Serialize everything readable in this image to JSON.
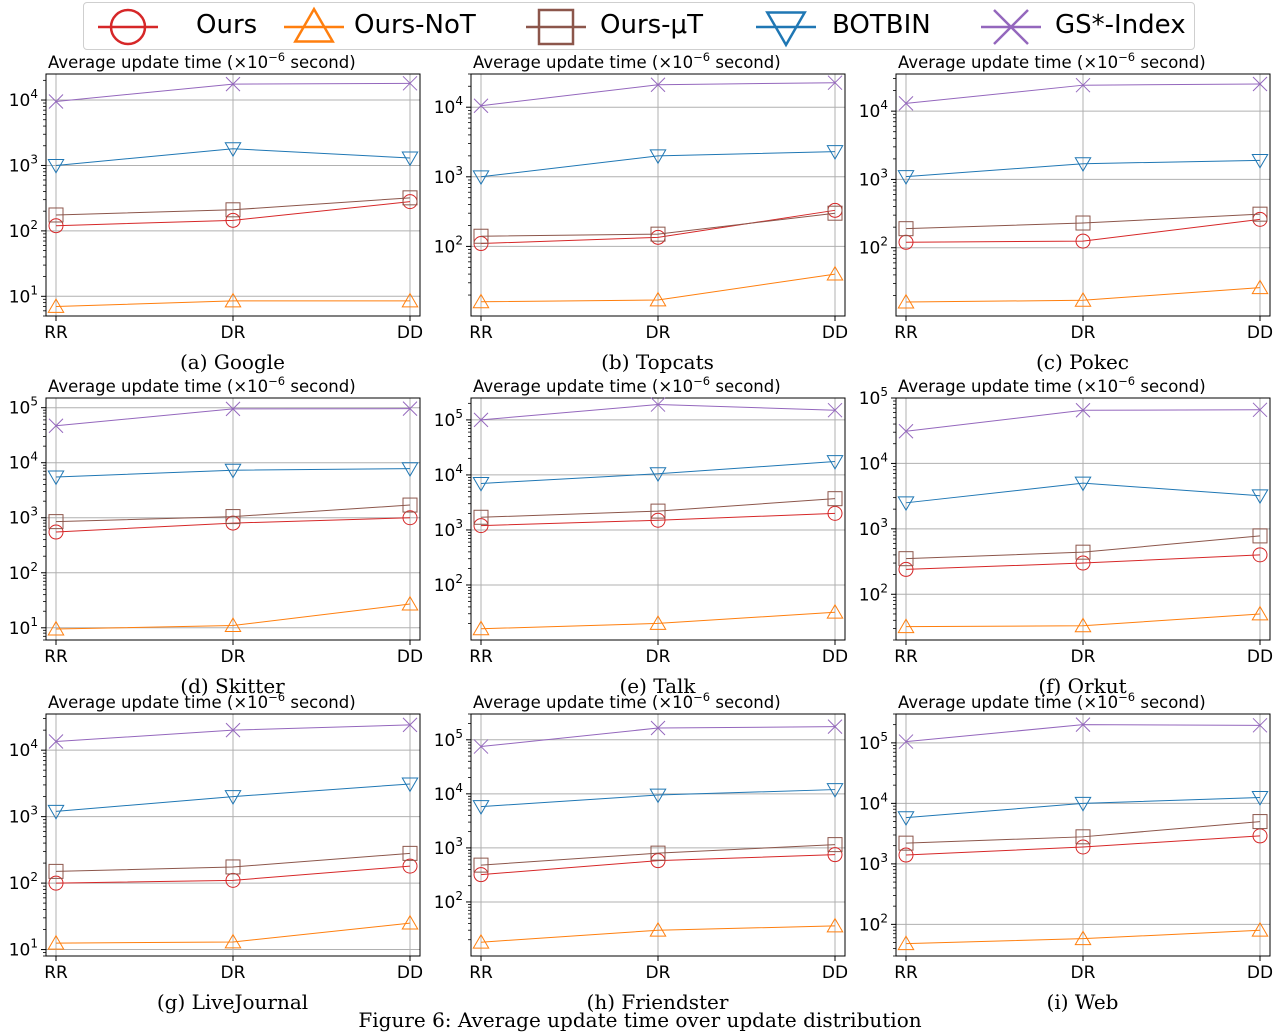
{
  "legend": [
    {
      "name": "Ours",
      "color": "#d62728",
      "marker": "circle"
    },
    {
      "name": "Ours-NoT",
      "color": "#ff7f0e",
      "marker": "triangle-up"
    },
    {
      "name": "Ours-μT",
      "color": "#8c564b",
      "marker": "square"
    },
    {
      "name": "BOTBIN",
      "color": "#1f77b4",
      "marker": "triangle-down"
    },
    {
      "name": "GS*-Index",
      "color": "#9467bd",
      "marker": "x"
    }
  ],
  "figure_caption": "Figure 6: Average update time over update distribution",
  "chart_data": [
    {
      "caption": "(a) Google",
      "type": "line",
      "ylabel": "Average update time (×10⁻⁶ second)",
      "yscale": "log",
      "categories": [
        "RR",
        "DR",
        "DD"
      ],
      "ylim": [
        5,
        25000
      ],
      "yticks_exp": [
        1,
        2,
        3,
        4
      ],
      "series": [
        {
          "name": "Ours",
          "values": [
            120,
            145,
            280
          ]
        },
        {
          "name": "Ours-NoT",
          "values": [
            7,
            8.5,
            8.5
          ]
        },
        {
          "name": "Ours-μT",
          "values": [
            175,
            210,
            320
          ]
        },
        {
          "name": "BOTBIN",
          "values": [
            1000,
            1800,
            1300
          ]
        },
        {
          "name": "GS*-Index",
          "values": [
            9500,
            17500,
            18000
          ]
        }
      ]
    },
    {
      "caption": "(b) Topcats",
      "type": "line",
      "ylabel": "Average update time (×10⁻⁶ second)",
      "yscale": "log",
      "categories": [
        "RR",
        "DR",
        "DD"
      ],
      "ylim": [
        10,
        30000
      ],
      "yticks_exp": [
        2,
        3,
        4
      ],
      "series": [
        {
          "name": "Ours",
          "values": [
            110,
            135,
            330
          ]
        },
        {
          "name": "Ours-NoT",
          "values": [
            16,
            17,
            40
          ]
        },
        {
          "name": "Ours-μT",
          "values": [
            140,
            150,
            300
          ]
        },
        {
          "name": "BOTBIN",
          "values": [
            1000,
            2000,
            2300
          ]
        },
        {
          "name": "GS*-Index",
          "values": [
            10500,
            21000,
            22500
          ]
        }
      ]
    },
    {
      "caption": "(c) Pokec",
      "type": "line",
      "ylabel": "Average update time (×10⁻⁶ second)",
      "yscale": "log",
      "categories": [
        "RR",
        "DR",
        "DD"
      ],
      "ylim": [
        10,
        35000
      ],
      "yticks_exp": [
        2,
        3,
        4
      ],
      "series": [
        {
          "name": "Ours",
          "values": [
            120,
            125,
            260
          ]
        },
        {
          "name": "Ours-NoT",
          "values": [
            16,
            17,
            26
          ]
        },
        {
          "name": "Ours-μT",
          "values": [
            190,
            230,
            310
          ]
        },
        {
          "name": "BOTBIN",
          "values": [
            1100,
            1700,
            1900
          ]
        },
        {
          "name": "GS*-Index",
          "values": [
            13000,
            24000,
            25000
          ]
        }
      ]
    },
    {
      "caption": "(d) Skitter",
      "type": "line",
      "ylabel": "Average update time (×10⁻⁶ second)",
      "yscale": "log",
      "categories": [
        "RR",
        "DR",
        "DD"
      ],
      "ylim": [
        6,
        150000
      ],
      "yticks_exp": [
        1,
        2,
        3,
        4,
        5
      ],
      "series": [
        {
          "name": "Ours",
          "values": [
            550,
            800,
            1000
          ]
        },
        {
          "name": "Ours-NoT",
          "values": [
            9.5,
            11,
            27
          ]
        },
        {
          "name": "Ours-μT",
          "values": [
            850,
            1050,
            1700
          ]
        },
        {
          "name": "BOTBIN",
          "values": [
            5500,
            7300,
            7800
          ]
        },
        {
          "name": "GS*-Index",
          "values": [
            47000,
            95000,
            96000
          ]
        }
      ]
    },
    {
      "caption": "(e) Talk",
      "type": "line",
      "ylabel": "Average update time (×10⁻⁶ second)",
      "yscale": "log",
      "categories": [
        "RR",
        "DR",
        "DD"
      ],
      "ylim": [
        10,
        250000
      ],
      "yticks_exp": [
        2,
        3,
        4,
        5
      ],
      "series": [
        {
          "name": "Ours",
          "values": [
            1200,
            1500,
            2000
          ]
        },
        {
          "name": "Ours-NoT",
          "values": [
            16,
            20,
            32
          ]
        },
        {
          "name": "Ours-μT",
          "values": [
            1700,
            2200,
            3700
          ]
        },
        {
          "name": "BOTBIN",
          "values": [
            7000,
            10500,
            17500
          ]
        },
        {
          "name": "GS*-Index",
          "values": [
            100000,
            190000,
            150000
          ]
        }
      ]
    },
    {
      "caption": "(f) Orkut",
      "type": "line",
      "ylabel": "Average update time (×10⁻⁶ second)",
      "yscale": "log",
      "categories": [
        "RR",
        "DR",
        "DD"
      ],
      "ylim": [
        20,
        100000
      ],
      "yticks_exp": [
        2,
        3,
        4,
        5
      ],
      "series": [
        {
          "name": "Ours",
          "values": [
            240,
            300,
            400
          ]
        },
        {
          "name": "Ours-NoT",
          "values": [
            32,
            33,
            50
          ]
        },
        {
          "name": "Ours-μT",
          "values": [
            350,
            440,
            780
          ]
        },
        {
          "name": "BOTBIN",
          "values": [
            2500,
            5000,
            3200
          ]
        },
        {
          "name": "GS*-Index",
          "values": [
            31000,
            65000,
            66000
          ]
        }
      ]
    },
    {
      "caption": "(g) LiveJournal",
      "type": "line",
      "ylabel": "Average update time (×10⁻⁶ second)",
      "yscale": "log",
      "categories": [
        "RR",
        "DR",
        "DD"
      ],
      "ylim": [
        8,
        35000
      ],
      "yticks_exp": [
        1,
        2,
        3,
        4
      ],
      "series": [
        {
          "name": "Ours",
          "values": [
            100,
            110,
            180
          ]
        },
        {
          "name": "Ours-NoT",
          "values": [
            12.5,
            13,
            25
          ]
        },
        {
          "name": "Ours-μT",
          "values": [
            150,
            175,
            280
          ]
        },
        {
          "name": "BOTBIN",
          "values": [
            1200,
            2000,
            3100
          ]
        },
        {
          "name": "GS*-Index",
          "values": [
            13500,
            20000,
            24000
          ]
        }
      ]
    },
    {
      "caption": "(h) Friendster",
      "type": "line",
      "ylabel": "Average update time (×10⁻⁶ second)",
      "yscale": "log",
      "categories": [
        "RR",
        "DR",
        "DD"
      ],
      "ylim": [
        10,
        300000
      ],
      "yticks_exp": [
        2,
        3,
        4,
        5
      ],
      "series": [
        {
          "name": "Ours",
          "values": [
            320,
            580,
            750
          ]
        },
        {
          "name": "Ours-NoT",
          "values": [
            18,
            30,
            36
          ]
        },
        {
          "name": "Ours-μT",
          "values": [
            480,
            800,
            1150
          ]
        },
        {
          "name": "BOTBIN",
          "values": [
            5800,
            9500,
            12000
          ]
        },
        {
          "name": "GS*-Index",
          "values": [
            75000,
            165000,
            175000
          ]
        }
      ]
    },
    {
      "caption": "(i) Web",
      "type": "line",
      "ylabel": "Average update time (×10⁻⁶ second)",
      "yscale": "log",
      "categories": [
        "RR",
        "DR",
        "DD"
      ],
      "ylim": [
        30,
        300000
      ],
      "yticks_exp": [
        2,
        3,
        4,
        5
      ],
      "series": [
        {
          "name": "Ours",
          "values": [
            1400,
            1900,
            2900
          ]
        },
        {
          "name": "Ours-NoT",
          "values": [
            48,
            58,
            80
          ]
        },
        {
          "name": "Ours-μT",
          "values": [
            2200,
            2800,
            5000
          ]
        },
        {
          "name": "BOTBIN",
          "values": [
            5800,
            10000,
            12500
          ]
        },
        {
          "name": "GS*-Index",
          "values": [
            105000,
            200000,
            195000
          ]
        }
      ]
    }
  ]
}
